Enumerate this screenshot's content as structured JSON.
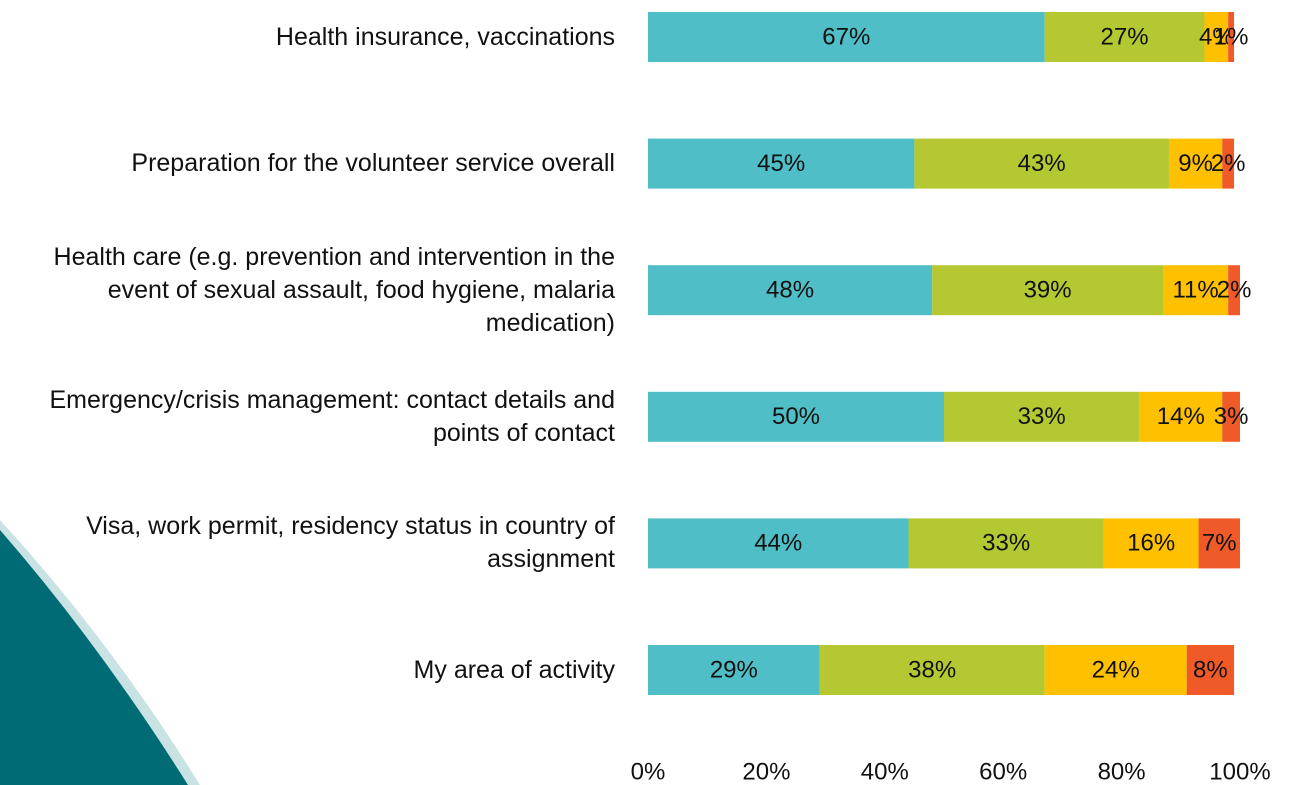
{
  "chart_data": {
    "type": "bar",
    "orientation": "horizontal",
    "stacked": true,
    "categories": [
      "Health insurance, vaccinations",
      "Preparation for the volunteer service overall",
      "Health care (e.g. prevention and intervention in the event of sexual assault, food hygiene, malaria medication)",
      "Emergency/crisis management: contact details and points of contact",
      "Visa, work permit, residency status in country of assignment",
      "My area of activity"
    ],
    "series": [
      {
        "color": "#4fbec6",
        "values": [
          67,
          45,
          48,
          50,
          44,
          29
        ],
        "value_labels": [
          "67%",
          "45%",
          "48%",
          "50%",
          "44%",
          "29%"
        ]
      },
      {
        "color": "#b5c832",
        "values": [
          27,
          43,
          39,
          33,
          33,
          38
        ],
        "value_labels": [
          "27%",
          "43%",
          "39%",
          "33%",
          "33%",
          "38%"
        ]
      },
      {
        "color": "#ffc000",
        "values": [
          4,
          9,
          11,
          14,
          16,
          24
        ],
        "value_labels": [
          "4%",
          "9%",
          "11%",
          "14%",
          "16%",
          "24%"
        ]
      },
      {
        "color": "#f05a28",
        "values": [
          1,
          2,
          2,
          3,
          7,
          8
        ],
        "value_labels": [
          "1%",
          "2%",
          "2%",
          "3%",
          "7%",
          "8%"
        ]
      }
    ],
    "xlim": [
      0,
      100
    ],
    "xticks": [
      {
        "value": 0,
        "label": "0%"
      },
      {
        "value": 20,
        "label": "20%"
      },
      {
        "value": 40,
        "label": "40%"
      },
      {
        "value": 60,
        "label": "60%"
      },
      {
        "value": 80,
        "label": "80%"
      },
      {
        "value": 100,
        "label": "100%"
      }
    ]
  }
}
